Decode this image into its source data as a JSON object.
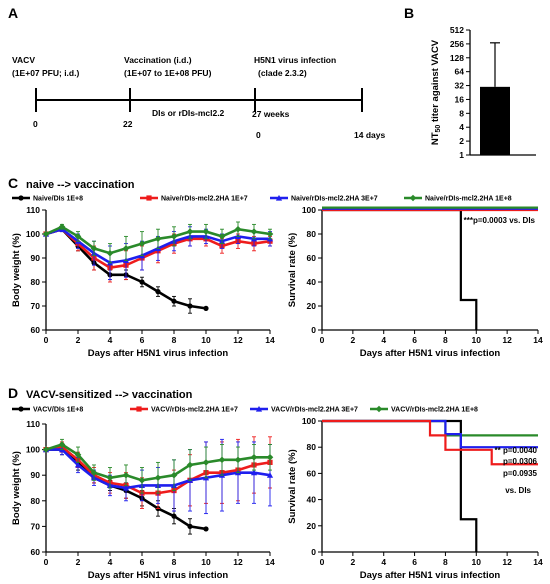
{
  "panels": {
    "A": "A",
    "B": "B",
    "C": "C",
    "D": "D"
  },
  "timeline": {
    "labels": [
      {
        "line1": "VACV",
        "line2": "(1E+07 PFU; i.d.)"
      },
      {
        "line1": "Vaccination (i.d.)",
        "line2": "(1E+07 to 1E+08 PFU)"
      },
      {
        "line1": "H5N1 virus infection",
        "line2": "(clade 2.3.2)"
      }
    ],
    "middle": "DIs or rDIs-mcl2.2",
    "ticks": [
      "0",
      "22",
      "27 weeks"
    ],
    "second_ticks": [
      "0",
      "14 days"
    ]
  },
  "colors": {
    "black": "#000000",
    "red": "#ee1c1c",
    "blue": "#1f1fee",
    "green": "#2a8a2a"
  },
  "chart_data": [
    {
      "id": "B",
      "type": "bar",
      "ylabel_main": "NT",
      "ylabel_sub": "50",
      "ylabel_rest": " titer against VACV",
      "yscale": "log2",
      "yticks": [
        "1",
        "2",
        "4",
        "8",
        "16",
        "32",
        "64",
        "128",
        "256",
        "512"
      ],
      "ylim": [
        1,
        512
      ],
      "values": [
        30
      ],
      "error": [
        240
      ]
    },
    {
      "id": "C-left",
      "type": "line",
      "title": "naive --> vaccination",
      "xlabel": "Days after H5N1 virus infection",
      "ylabel": "Body weight (%)",
      "xlim": [
        0,
        14
      ],
      "ylim": [
        60,
        110
      ],
      "xticks": [
        "0",
        "2",
        "4",
        "6",
        "8",
        "10",
        "12",
        "14"
      ],
      "yticks": [
        "60",
        "70",
        "80",
        "90",
        "100",
        "110"
      ],
      "series": [
        {
          "name": "Naive/DIs 1E+8",
          "color": "#000000",
          "x": [
            0,
            1,
            2,
            3,
            4,
            5,
            6,
            7,
            8,
            9,
            10
          ],
          "y": [
            100,
            102,
            95,
            88,
            83,
            83,
            80,
            76,
            72,
            70,
            69
          ],
          "err": [
            0,
            1,
            2,
            3,
            2,
            2,
            2,
            2,
            2,
            3,
            0
          ]
        },
        {
          "name": "Naive/rDIs-mcl2.2HA 1E+7",
          "color": "#ee1c1c",
          "x": [
            0,
            1,
            2,
            3,
            4,
            5,
            6,
            7,
            8,
            9,
            10,
            11,
            12,
            13,
            14
          ],
          "y": [
            100,
            102,
            96,
            90,
            86,
            87,
            90,
            93,
            96,
            98,
            98,
            95,
            97,
            96,
            97
          ],
          "err": [
            0,
            1,
            3,
            5,
            6,
            6,
            5,
            5,
            4,
            3,
            3,
            3,
            3,
            3,
            2
          ]
        },
        {
          "name": "Naive/rDIs-mcl2.2HA 3E+7",
          "color": "#1f1fee",
          "x": [
            0,
            1,
            2,
            3,
            4,
            5,
            6,
            7,
            8,
            9,
            10,
            11,
            12,
            13,
            14
          ],
          "y": [
            100,
            102,
            97,
            92,
            88,
            89,
            91,
            94,
            97,
            99,
            99,
            97,
            99,
            98,
            98
          ],
          "err": [
            0,
            1,
            3,
            5,
            7,
            7,
            6,
            5,
            4,
            4,
            3,
            3,
            3,
            3,
            3
          ]
        },
        {
          "name": "Naive/rDIs-mcl2.2HA 1E+8",
          "color": "#2a8a2a",
          "x": [
            0,
            1,
            2,
            3,
            4,
            5,
            6,
            7,
            8,
            9,
            10,
            11,
            12,
            13,
            14
          ],
          "y": [
            100,
            103,
            99,
            94,
            92,
            94,
            96,
            98,
            99,
            101,
            101,
            99,
            102,
            101,
            100
          ],
          "err": [
            0,
            1,
            2,
            3,
            4,
            5,
            5,
            4,
            4,
            3,
            3,
            3,
            3,
            3,
            2
          ]
        }
      ]
    },
    {
      "id": "C-right",
      "type": "line",
      "xlabel": "Days after H5N1 virus infection",
      "ylabel": "Survival rate (%)",
      "xlim": [
        0,
        14
      ],
      "ylim": [
        0,
        100
      ],
      "xticks": [
        "0",
        "2",
        "4",
        "6",
        "8",
        "10",
        "12",
        "14"
      ],
      "yticks": [
        "0",
        "20",
        "40",
        "60",
        "80",
        "100"
      ],
      "annotation": "***p=0.0003 vs. DIs",
      "series": [
        {
          "color": "#000000",
          "x": [
            0,
            9,
            9,
            10,
            10
          ],
          "y": [
            100,
            100,
            25,
            25,
            0
          ]
        },
        {
          "color": "#ee1c1c",
          "x": [
            0,
            14
          ],
          "y": [
            100,
            100
          ]
        },
        {
          "color": "#1f1fee",
          "x": [
            0,
            14
          ],
          "y": [
            101,
            101
          ]
        },
        {
          "color": "#2a8a2a",
          "x": [
            0,
            14
          ],
          "y": [
            102,
            102
          ]
        }
      ]
    },
    {
      "id": "D-left",
      "type": "line",
      "title": "VACV-sensitized --> vaccination",
      "xlabel": "Days after H5N1 virus infection",
      "ylabel": "Body weight (%)",
      "xlim": [
        0,
        14
      ],
      "ylim": [
        60,
        110
      ],
      "xticks": [
        "0",
        "2",
        "4",
        "6",
        "8",
        "10",
        "12",
        "14"
      ],
      "yticks": [
        "60",
        "70",
        "80",
        "90",
        "100",
        "110"
      ],
      "series": [
        {
          "name": "VACV/DIs 1E+8",
          "color": "#000000",
          "x": [
            0,
            1,
            2,
            3,
            4,
            5,
            6,
            7,
            8,
            9,
            10
          ],
          "y": [
            100,
            100,
            95,
            89,
            86,
            84,
            81,
            77,
            74,
            70,
            69
          ],
          "err": [
            0,
            2,
            3,
            2,
            2,
            3,
            3,
            3,
            3,
            3,
            0
          ]
        },
        {
          "name": "VACV/rDIs-mcl2.2HA 1E+7",
          "color": "#ee1c1c",
          "x": [
            0,
            1,
            2,
            3,
            4,
            5,
            6,
            7,
            8,
            9,
            10,
            11,
            12,
            13,
            14
          ],
          "y": [
            100,
            101,
            96,
            90,
            87,
            86,
            83,
            83,
            84,
            88,
            91,
            91,
            92,
            94,
            95
          ],
          "err": [
            0,
            2,
            3,
            3,
            4,
            5,
            6,
            6,
            8,
            10,
            12,
            12,
            12,
            11,
            10
          ]
        },
        {
          "name": "VACV/rDIs-mcl2.2HA 3E+7",
          "color": "#1f1fee",
          "x": [
            0,
            1,
            2,
            3,
            4,
            5,
            6,
            7,
            8,
            9,
            10,
            11,
            12,
            13,
            14
          ],
          "y": [
            100,
            100,
            94,
            89,
            86,
            85,
            86,
            86,
            86,
            88,
            89,
            90,
            91,
            91,
            90
          ],
          "err": [
            0,
            2,
            3,
            3,
            4,
            5,
            6,
            7,
            10,
            12,
            14,
            14,
            12,
            12,
            12
          ]
        },
        {
          "name": "VACV/rDIs-mcl2.2HA 1E+8",
          "color": "#2a8a2a",
          "x": [
            0,
            1,
            2,
            3,
            4,
            5,
            6,
            7,
            8,
            9,
            10,
            11,
            12,
            13,
            14
          ],
          "y": [
            100,
            102,
            98,
            91,
            89,
            90,
            88,
            89,
            90,
            94,
            95,
            96,
            96,
            97,
            97
          ],
          "err": [
            0,
            2,
            3,
            3,
            4,
            4,
            5,
            6,
            6,
            6,
            6,
            6,
            5,
            5,
            5
          ]
        }
      ]
    },
    {
      "id": "D-right",
      "type": "line",
      "xlabel": "Days after H5N1 virus infection",
      "ylabel": "Survival rate (%)",
      "xlim": [
        0,
        14
      ],
      "ylim": [
        0,
        100
      ],
      "xticks": [
        "0",
        "2",
        "4",
        "6",
        "8",
        "10",
        "12",
        "14"
      ],
      "yticks": [
        "0",
        "20",
        "40",
        "60",
        "80",
        "100"
      ],
      "annotations": [
        "** p=0.0040",
        "p=0.0306",
        "p=0.0935",
        "vs. DIs"
      ],
      "series": [
        {
          "color": "#000000",
          "x": [
            0,
            9,
            9,
            10,
            10
          ],
          "y": [
            100,
            100,
            25,
            25,
            0
          ]
        },
        {
          "color": "#2a8a2a",
          "x": [
            0,
            8,
            8,
            14
          ],
          "y": [
            100,
            100,
            89,
            89
          ]
        },
        {
          "color": "#1f1fee",
          "x": [
            0,
            8,
            8,
            9,
            9,
            14
          ],
          "y": [
            100,
            100,
            90,
            90,
            80,
            80
          ]
        },
        {
          "color": "#ee1c1c",
          "x": [
            0,
            7,
            7,
            8,
            8,
            11,
            11,
            14
          ],
          "y": [
            100,
            100,
            89,
            89,
            78,
            78,
            67,
            67
          ]
        }
      ]
    }
  ]
}
